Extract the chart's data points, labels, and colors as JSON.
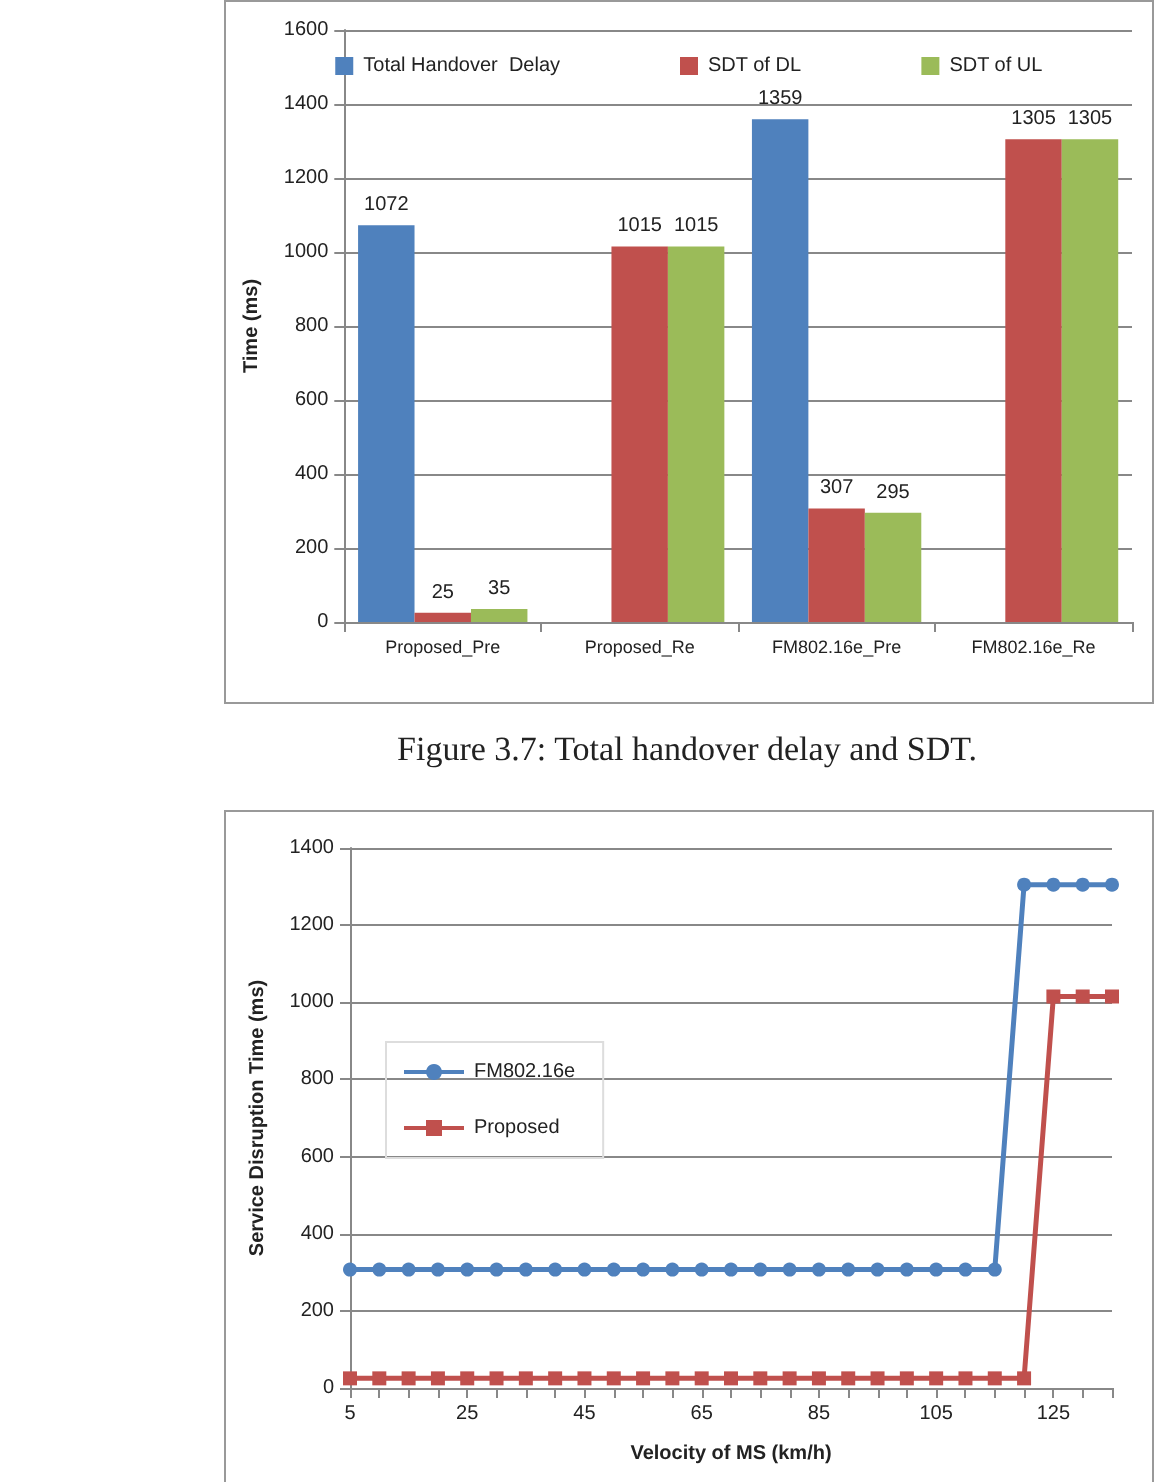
{
  "chart_data": [
    {
      "type": "bar",
      "ylabel": "Time (ms)",
      "categories": [
        "Proposed_Pre",
        "Proposed_Re",
        "FM802.16e_Pre",
        "FM802.16e_Re"
      ],
      "series": [
        {
          "name": "Total Handover  Delay",
          "color": "#4f81bd",
          "values": [
            1072,
            null,
            1359,
            null
          ]
        },
        {
          "name": "SDT of DL",
          "color": "#c0504d",
          "values": [
            25,
            1015,
            307,
            1305
          ]
        },
        {
          "name": "SDT of UL",
          "color": "#9bbb59",
          "values": [
            35,
            1015,
            295,
            1305
          ]
        }
      ],
      "ylim": [
        0,
        1600
      ],
      "yticks": [
        0,
        200,
        400,
        600,
        800,
        1000,
        1200,
        1400,
        1600
      ],
      "grid": "y",
      "legend": "top",
      "data_labels": true,
      "annotations": [
        "Figure 3.7:    Total handover delay and SDT."
      ]
    },
    {
      "type": "line",
      "xlabel": "Velocity of MS (km/h)",
      "ylabel": "Service Disruption Time (ms)",
      "categories": [
        "5",
        null,
        null,
        null,
        "25",
        null,
        null,
        null,
        "45",
        null,
        null,
        null,
        "65",
        null,
        null,
        null,
        "85",
        null,
        null,
        null,
        "105",
        null,
        null,
        null,
        "125",
        null,
        null
      ],
      "series": [
        {
          "name": "FM802.16e",
          "color": "#4f81bd",
          "marker": "circle",
          "values": [
            307,
            307,
            307,
            307,
            307,
            307,
            307,
            307,
            307,
            307,
            307,
            307,
            307,
            307,
            307,
            307,
            307,
            307,
            307,
            307,
            307,
            307,
            307,
            1305,
            1305,
            1305,
            1305
          ]
        },
        {
          "name": "Proposed",
          "color": "#c0504d",
          "marker": "square",
          "values": [
            25,
            25,
            25,
            25,
            25,
            25,
            25,
            25,
            25,
            25,
            25,
            25,
            25,
            25,
            25,
            25,
            25,
            25,
            25,
            25,
            25,
            25,
            25,
            25,
            1015,
            1015,
            1015
          ]
        }
      ],
      "ylim": [
        0,
        1400
      ],
      "yticks": [
        0,
        200,
        400,
        600,
        800,
        1000,
        1200,
        1400
      ],
      "grid": "y",
      "legend": "left"
    }
  ]
}
